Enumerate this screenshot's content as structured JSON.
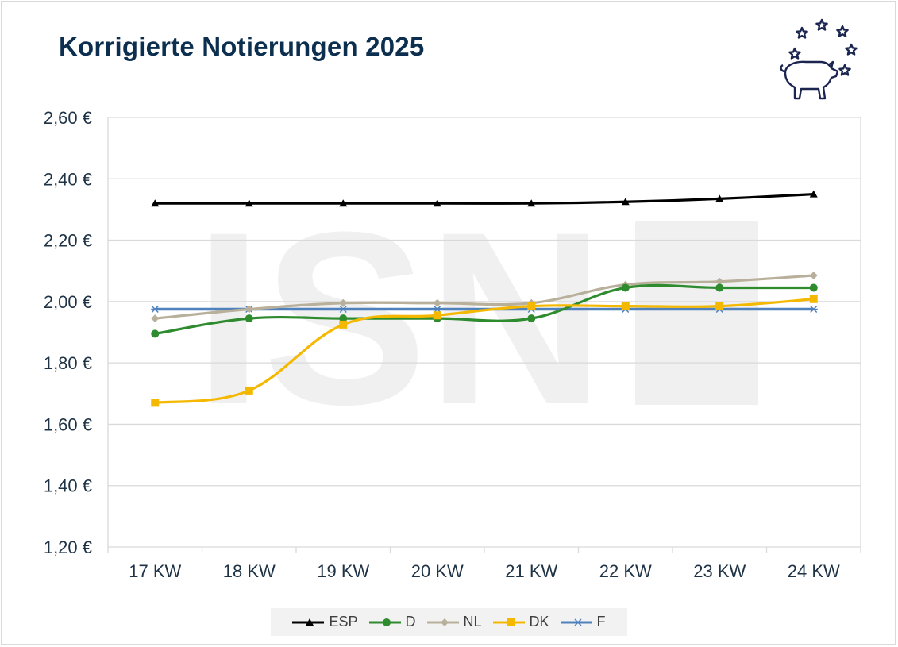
{
  "chart_data": {
    "type": "line",
    "title": "Korrigierte Notierungen 2025",
    "categories": [
      "17 KW",
      "18 KW",
      "19 KW",
      "20 KW",
      "21 KW",
      "22 KW",
      "23 KW",
      "24 KW"
    ],
    "ylim": [
      1.2,
      2.6
    ],
    "yticks": [
      "1,20 €",
      "1,40 €",
      "1,60 €",
      "1,80 €",
      "2,00 €",
      "2,20 €",
      "2,40 €",
      "2,60 €"
    ],
    "xlabel": "",
    "ylabel": "",
    "grid": true,
    "legend_position": "bottom",
    "series": [
      {
        "name": "ESP",
        "color": "#000000",
        "marker": "triangle",
        "values": [
          2.32,
          2.32,
          2.32,
          2.32,
          2.32,
          2.325,
          2.335,
          2.35
        ]
      },
      {
        "name": "D",
        "color": "#2e8b2e",
        "marker": "circle",
        "values": [
          1.895,
          1.945,
          1.945,
          1.945,
          1.945,
          2.045,
          2.045,
          2.045
        ]
      },
      {
        "name": "NL",
        "color": "#b8b09a",
        "marker": "diamond",
        "values": [
          1.945,
          1.975,
          1.995,
          1.995,
          1.995,
          2.055,
          2.065,
          2.085
        ]
      },
      {
        "name": "DK",
        "color": "#f5b800",
        "marker": "square",
        "values": [
          1.67,
          1.71,
          1.925,
          1.955,
          1.985,
          1.985,
          1.985,
          2.008
        ]
      },
      {
        "name": "F",
        "color": "#4f81bd",
        "marker": "star",
        "values": [
          1.975,
          1.975,
          1.975,
          1.975,
          1.975,
          1.975,
          1.975,
          1.975
        ]
      }
    ]
  },
  "watermark": {
    "text": "ISN",
    "color": "#f0f0f0"
  },
  "logo": {
    "icon": "pig-with-eu-stars-icon",
    "color": "#1a2550"
  }
}
